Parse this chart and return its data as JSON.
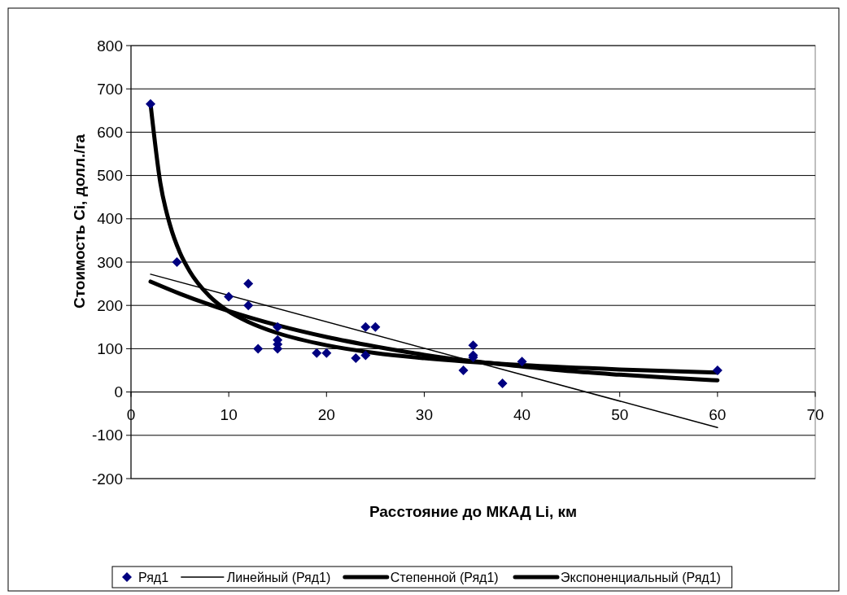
{
  "chart_data": {
    "type": "scatter",
    "xlabel": "Расстояние до МКАД Li, км",
    "ylabel": "Стоимость Ci, долл./га",
    "xlim": [
      0,
      70
    ],
    "xticks": [
      0,
      10,
      20,
      30,
      40,
      50,
      60,
      70
    ],
    "ylim": [
      -200,
      800
    ],
    "yticks": [
      -200,
      -100,
      0,
      100,
      200,
      300,
      400,
      500,
      600,
      700,
      800
    ],
    "grid": "y",
    "legend": "bottom",
    "series": [
      {
        "name": "Ряд1",
        "marker": "diamond",
        "color": "#000080",
        "x": [
          2,
          4.7,
          10,
          12,
          12,
          13,
          15,
          15,
          15,
          15,
          19,
          20,
          23,
          24,
          24,
          25,
          34,
          35,
          35,
          35,
          38,
          40,
          60
        ],
        "values": [
          665,
          300,
          220,
          250,
          200,
          100,
          150,
          120,
          110,
          100,
          90,
          90,
          78,
          150,
          85,
          150,
          50,
          108,
          85,
          80,
          20,
          70,
          50
        ]
      },
      {
        "name": "Линейный (Ряд1)",
        "type": "line",
        "marker": "none",
        "line_style": "solid",
        "color": "#000000",
        "x": [
          2,
          60
        ],
        "values": [
          272,
          -82
        ]
      },
      {
        "name": "Степенной (Ряд1)",
        "type": "line",
        "marker": "none",
        "line_style": "solid",
        "color": "#000000",
        "x": [
          2,
          3,
          4,
          5,
          6,
          8,
          10,
          12,
          15,
          20,
          25,
          30,
          40,
          50,
          60
        ],
        "values": [
          665,
          483,
          385,
          322,
          279,
          222,
          186,
          162,
          136,
          108,
          90,
          78,
          62,
          52,
          45
        ]
      },
      {
        "name": "Экспоненциальный (Ряд1)",
        "type": "line",
        "marker": "none",
        "line_style": "solid",
        "color": "#000000",
        "x": [
          2,
          5,
          10,
          15,
          20,
          25,
          30,
          35,
          40,
          45,
          50,
          55,
          60
        ],
        "values": [
          255,
          227,
          187,
          154,
          127,
          105,
          86,
          71,
          59,
          48,
          40,
          33,
          27
        ]
      }
    ]
  }
}
